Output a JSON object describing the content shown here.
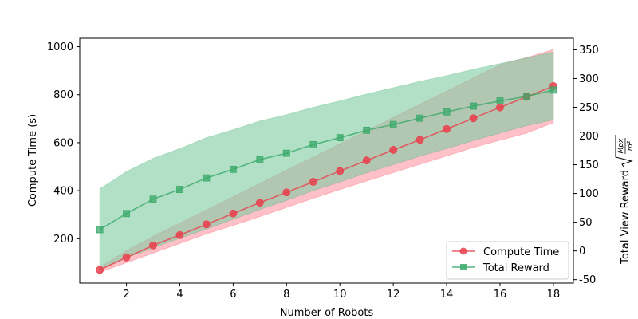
{
  "chart_data": {
    "type": "line",
    "xlabel": "Number of Robots",
    "ylabel_left": "Compute Time (s)",
    "ylabel_right_text": "Total View Reward",
    "ylabel_right_sqrt_num": "Mpx",
    "ylabel_right_sqrt_den": "m²",
    "xlim": [
      0.25,
      18.75
    ],
    "ylim_left": [
      15,
      1035
    ],
    "ylim_right": [
      -56,
      370
    ],
    "x_ticks": [
      2,
      4,
      6,
      8,
      10,
      12,
      14,
      16,
      18
    ],
    "y_ticks_left": [
      200,
      400,
      600,
      800,
      1000
    ],
    "y_ticks_right": [
      -50,
      0,
      50,
      100,
      150,
      200,
      250,
      300,
      350
    ],
    "x": [
      1,
      2,
      3,
      4,
      5,
      6,
      7,
      8,
      9,
      10,
      11,
      12,
      13,
      14,
      15,
      16,
      17,
      18
    ],
    "series": [
      {
        "name": "Compute Time",
        "axis": "left",
        "marker": "circle",
        "color": "#e8414e",
        "values": [
          70,
          122,
          172,
          215,
          260,
          305,
          350,
          393,
          437,
          482,
          526,
          570,
          612,
          657,
          702,
          747,
          791,
          836
        ],
        "band_lower": [
          60,
          100,
          140,
          180,
          220,
          255,
          292,
          330,
          368,
          405,
          440,
          475,
          510,
          545,
          580,
          610,
          640,
          683
        ],
        "band_upper": [
          80,
          150,
          210,
          265,
          320,
          375,
          430,
          485,
          540,
          595,
          650,
          705,
          760,
          815,
          870,
          925,
          955,
          988
        ]
      },
      {
        "name": "Total Reward",
        "axis": "right",
        "marker": "square",
        "color": "#3aaa6a",
        "values": [
          37,
          65,
          90,
          107,
          127,
          142,
          159,
          170,
          185,
          197,
          210,
          220,
          231,
          242,
          252,
          261,
          269,
          280
        ],
        "band_lower": [
          -32,
          -12,
          5,
          22,
          38,
          55,
          72,
          88,
          105,
          120,
          136,
          150,
          165,
          178,
          192,
          205,
          218,
          228
        ],
        "band_upper": [
          108,
          138,
          161,
          178,
          197,
          211,
          226,
          237,
          250,
          261,
          273,
          284,
          295,
          305,
          316,
          326,
          336,
          346
        ]
      }
    ],
    "legend_position": "lower-right"
  }
}
